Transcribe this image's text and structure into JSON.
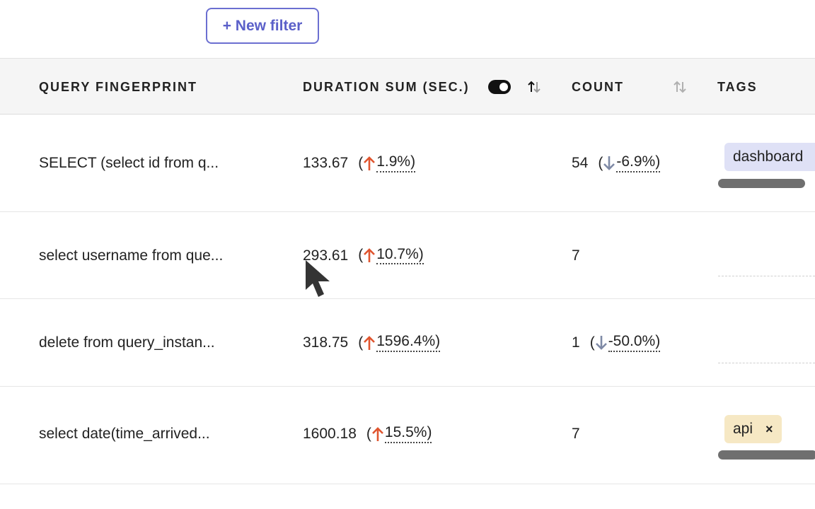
{
  "toolbar": {
    "new_filter_label": "+ New filter"
  },
  "table": {
    "columns": [
      {
        "label": "QUERY FINGERPRINT"
      },
      {
        "label": "DURATION SUM (SEC.)"
      },
      {
        "label": "COUNT"
      },
      {
        "label": "TAGS"
      }
    ],
    "rows": [
      {
        "fingerprint": "SELECT (select id from q...",
        "duration": "133.67",
        "duration_delta": "1.9%)",
        "count": "54",
        "count_delta": "-6.9%)",
        "tag": "dashboard"
      },
      {
        "fingerprint": "select username from que...",
        "duration": "293.61",
        "duration_delta": "10.7%)",
        "count": "7"
      },
      {
        "fingerprint": "delete from query_instan...",
        "duration": "318.75",
        "duration_delta": "1596.4%)",
        "count": "1",
        "count_delta": "-50.0%)"
      },
      {
        "fingerprint": "select date(time_arrived...",
        "duration": "1600.18",
        "duration_delta": "15.5%)",
        "count": "7",
        "tag": "api",
        "tag_remove": "×"
      }
    ]
  },
  "colors": {
    "accent": "#5b60c9",
    "increase": "#e0552f",
    "decrease": "#7f8aa6",
    "tag_dashboard_bg": "#dfe1f6",
    "tag_api_bg": "#f6e8c4"
  },
  "icons": {
    "increase": "arrow-up-icon",
    "decrease": "arrow-down-icon",
    "sort": "sort-icon",
    "toggle": "toggle-icon",
    "remove": "close-icon"
  }
}
